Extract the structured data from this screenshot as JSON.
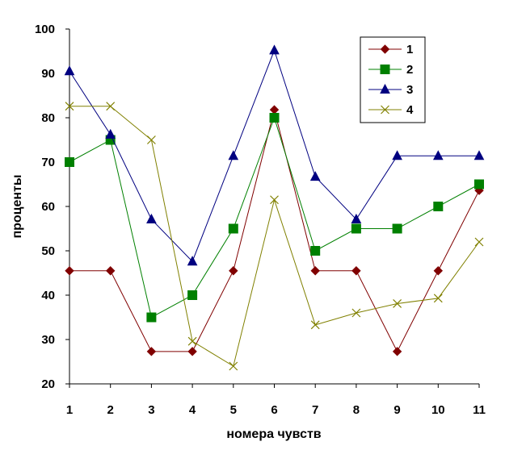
{
  "chart_data": {
    "type": "line",
    "title": "",
    "xlabel": "номера чувств",
    "ylabel": "проценты",
    "x": [
      1,
      2,
      3,
      4,
      5,
      6,
      7,
      8,
      9,
      10,
      11
    ],
    "x_tick_labels": [
      "1",
      "2",
      "3",
      "4",
      "5",
      "6",
      "7",
      "8",
      "9",
      "10",
      "11"
    ],
    "ylim": [
      20,
      100
    ],
    "y_ticks": [
      20,
      30,
      40,
      50,
      60,
      70,
      80,
      90,
      100
    ],
    "y_tick_labels": [
      "20",
      "30",
      "40",
      "50",
      "60",
      "70",
      "80",
      "90",
      "100"
    ],
    "grid": false,
    "legend": {
      "position": "top-right"
    },
    "series": [
      {
        "name": "1",
        "color": "#800000",
        "marker": "diamond",
        "values": [
          45.5,
          45.5,
          27.3,
          27.3,
          45.5,
          81.8,
          45.5,
          45.5,
          27.3,
          45.5,
          63.6
        ]
      },
      {
        "name": "2",
        "color": "#008000",
        "marker": "square",
        "values": [
          70,
          75,
          35,
          40,
          55,
          80,
          50,
          55,
          55,
          60,
          65
        ]
      },
      {
        "name": "3",
        "color": "#000080",
        "marker": "triangle",
        "values": [
          90.5,
          76.2,
          57.1,
          47.6,
          71.4,
          95.2,
          66.7,
          57.1,
          71.4,
          71.4,
          71.4
        ]
      },
      {
        "name": "4",
        "color": "#808000",
        "marker": "x",
        "values": [
          82.6,
          82.6,
          75.0,
          29.6,
          24.0,
          61.5,
          33.3,
          36.0,
          38.1,
          39.3,
          52.0
        ]
      }
    ]
  }
}
